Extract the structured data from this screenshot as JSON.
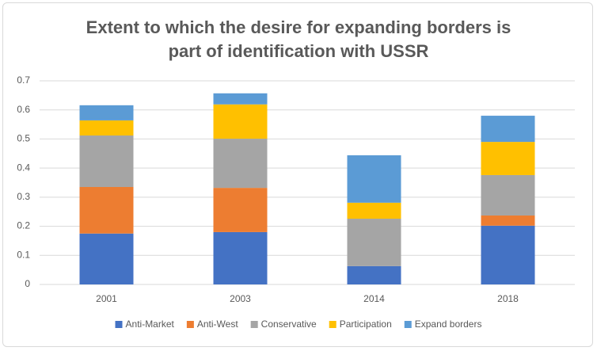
{
  "chart_data": {
    "type": "stacked_bar",
    "title": "Extent to which the desire for expanding borders is part of identification with USSR",
    "categories": [
      "2001",
      "2003",
      "2014",
      "2018"
    ],
    "series": [
      {
        "name": "Anti-Market",
        "color": "#4472c4",
        "values": [
          0.175,
          0.18,
          0.063,
          0.202
        ]
      },
      {
        "name": "Anti-West",
        "color": "#ed7d31",
        "values": [
          0.16,
          0.152,
          0,
          0.035
        ]
      },
      {
        "name": "Conservative",
        "color": "#a5a5a5",
        "values": [
          0.177,
          0.169,
          0.163,
          0.139
        ]
      },
      {
        "name": "Participation",
        "color": "#ffc000",
        "values": [
          0.052,
          0.118,
          0.055,
          0.114
        ]
      },
      {
        "name": "Expand borders",
        "color": "#5b9bd5",
        "values": [
          0.052,
          0.038,
          0.163,
          0.09
        ]
      }
    ],
    "ylim": [
      0,
      0.7
    ],
    "yticks": [
      0,
      0.1,
      0.2,
      0.3,
      0.4,
      0.5,
      0.6,
      0.7
    ],
    "grid": true,
    "legend": "bottom"
  }
}
